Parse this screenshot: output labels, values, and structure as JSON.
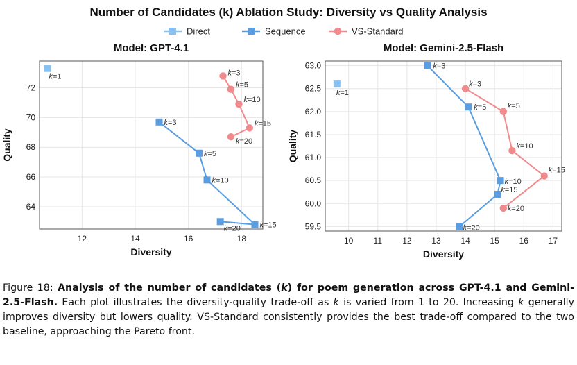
{
  "figure_title": "Number of Candidates (k) Ablation Study: Diversity vs Quality Analysis",
  "legend": [
    {
      "name": "Direct",
      "color": "#87c1f1",
      "marker": "square"
    },
    {
      "name": "Sequence",
      "color": "#5a9de0",
      "marker": "square"
    },
    {
      "name": "VS-Standard",
      "color": "#f08a8d",
      "marker": "circle"
    }
  ],
  "chart_data": [
    {
      "type": "scatter",
      "title": "Model: GPT-4.1",
      "xlabel": "Diversity",
      "ylabel": "Quality",
      "xlim": [
        10.4,
        18.8
      ],
      "ylim": [
        62.5,
        73.8
      ],
      "xticks": [
        12,
        14,
        16,
        18
      ],
      "yticks": [
        64,
        66,
        68,
        70,
        72
      ],
      "ytick_labels": [
        "64",
        "66",
        "68",
        "70",
        "72"
      ],
      "grid": true,
      "series": [
        {
          "name": "Direct",
          "points": [
            {
              "x": 10.7,
              "y": 73.3,
              "label": "k=1"
            }
          ]
        },
        {
          "name": "Sequence",
          "points": [
            {
              "x": 14.9,
              "y": 69.7,
              "label": "k=3"
            },
            {
              "x": 16.4,
              "y": 67.6,
              "label": "k=5"
            },
            {
              "x": 16.7,
              "y": 65.8,
              "label": "k=10"
            },
            {
              "x": 18.5,
              "y": 62.8,
              "label": "k=15"
            },
            {
              "x": 17.2,
              "y": 63.0,
              "label": "k=20"
            }
          ]
        },
        {
          "name": "VS-Standard",
          "points": [
            {
              "x": 17.3,
              "y": 72.8,
              "label": "k=3"
            },
            {
              "x": 17.6,
              "y": 71.9,
              "label": "k=5"
            },
            {
              "x": 17.9,
              "y": 70.9,
              "label": "k=10"
            },
            {
              "x": 18.3,
              "y": 69.3,
              "label": "k=15"
            },
            {
              "x": 17.6,
              "y": 68.7,
              "label": "k=20"
            }
          ]
        }
      ]
    },
    {
      "type": "scatter",
      "title": "Model: Gemini-2.5-Flash",
      "xlabel": "Diversity",
      "ylabel": "Quality",
      "xlim": [
        9.2,
        17.3
      ],
      "ylim": [
        59.4,
        63.1
      ],
      "xticks": [
        10,
        11,
        12,
        13,
        14,
        15,
        16,
        17
      ],
      "yticks": [
        59.5,
        60.0,
        60.5,
        61.0,
        61.5,
        62.0,
        62.5,
        63.0
      ],
      "ytick_labels": [
        "59.5",
        "60.0",
        "60.5",
        "61.0",
        "61.5",
        "62.0",
        "62.5",
        "63.0"
      ],
      "grid": true,
      "series": [
        {
          "name": "Direct",
          "points": [
            {
              "x": 9.6,
              "y": 62.6,
              "label": "k=1"
            }
          ]
        },
        {
          "name": "Sequence",
          "points": [
            {
              "x": 12.7,
              "y": 63.0,
              "label": "k=3"
            },
            {
              "x": 14.1,
              "y": 62.1,
              "label": "k=5"
            },
            {
              "x": 15.2,
              "y": 60.5,
              "label": "k=10"
            },
            {
              "x": 15.1,
              "y": 60.2,
              "label": "k=15"
            },
            {
              "x": 13.8,
              "y": 59.5,
              "label": "k=20"
            }
          ]
        },
        {
          "name": "VS-Standard",
          "points": [
            {
              "x": 14.0,
              "y": 62.5,
              "label": "k=3"
            },
            {
              "x": 15.3,
              "y": 62.0,
              "label": "k=5"
            },
            {
              "x": 15.6,
              "y": 61.15,
              "label": "k=10"
            },
            {
              "x": 16.7,
              "y": 60.6,
              "label": "k=15"
            },
            {
              "x": 15.3,
              "y": 59.9,
              "label": "k=20"
            }
          ]
        }
      ]
    }
  ],
  "caption": {
    "prefix": "Figure 18: ",
    "bold_part1": "Analysis of the number of candidates (",
    "bold_k": "k",
    "bold_part2": ") for poem generation across GPT-4.1 and Gemini-2.5-Flash.",
    "text1": " Each plot illustrates the diversity-quality trade-off as ",
    "k1": "k",
    "text2": " is varied from 1 to 20. Increasing ",
    "k2": "k",
    "text3": " generally improves diversity but lowers quality. VS-Standard consistently provides the best trade-off compared to the two baseline, approaching the Pareto front."
  }
}
